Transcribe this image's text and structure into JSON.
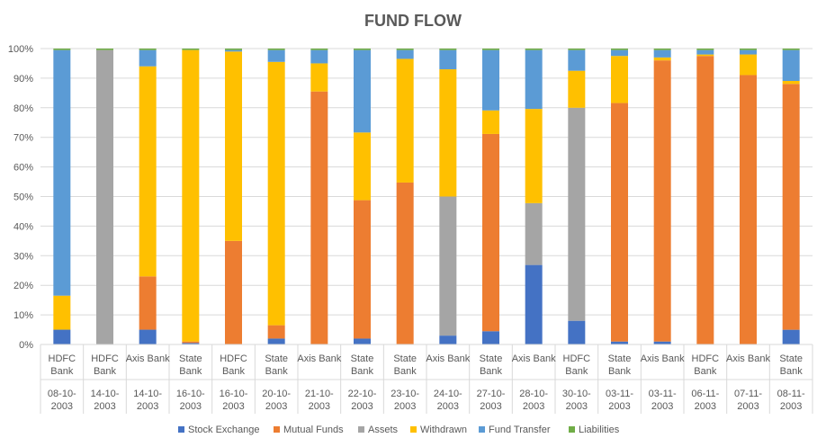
{
  "chart_data": {
    "type": "bar",
    "stacked": true,
    "normalized": true,
    "title": "FUND FLOW",
    "xlabel": "",
    "ylabel": "",
    "ylim": [
      0,
      100
    ],
    "yticks": [
      "0%",
      "10%",
      "20%",
      "30%",
      "40%",
      "50%",
      "60%",
      "70%",
      "80%",
      "90%",
      "100%"
    ],
    "grid": true,
    "legend_position": "bottom",
    "categories": [
      {
        "bank": [
          "HDFC",
          "Bank"
        ],
        "date": [
          "08-10-",
          "2003"
        ]
      },
      {
        "bank": [
          "HDFC",
          "Bank"
        ],
        "date": [
          "14-10-",
          "2003"
        ]
      },
      {
        "bank": [
          "Axis Bank"
        ],
        "date": [
          "14-10-",
          "2003"
        ]
      },
      {
        "bank": [
          "State",
          "Bank"
        ],
        "date": [
          "16-10-",
          "2003"
        ]
      },
      {
        "bank": [
          "HDFC",
          "Bank"
        ],
        "date": [
          "16-10-",
          "2003"
        ]
      },
      {
        "bank": [
          "State",
          "Bank"
        ],
        "date": [
          "20-10-",
          "2003"
        ]
      },
      {
        "bank": [
          "Axis Bank"
        ],
        "date": [
          "21-10-",
          "2003"
        ]
      },
      {
        "bank": [
          "State",
          "Bank"
        ],
        "date": [
          "22-10-",
          "2003"
        ]
      },
      {
        "bank": [
          "State",
          "Bank"
        ],
        "date": [
          "23-10-",
          "2003"
        ]
      },
      {
        "bank": [
          "Axis Bank"
        ],
        "date": [
          "24-10-",
          "2003"
        ]
      },
      {
        "bank": [
          "State",
          "Bank"
        ],
        "date": [
          "27-10-",
          "2003"
        ]
      },
      {
        "bank": [
          "Axis Bank"
        ],
        "date": [
          "28-10-",
          "2003"
        ]
      },
      {
        "bank": [
          "HDFC",
          "Bank"
        ],
        "date": [
          "30-10-",
          "2003"
        ]
      },
      {
        "bank": [
          "State",
          "Bank"
        ],
        "date": [
          "03-11-",
          "2003"
        ]
      },
      {
        "bank": [
          "Axis Bank"
        ],
        "date": [
          "03-11-",
          "2003"
        ]
      },
      {
        "bank": [
          "HDFC",
          "Bank"
        ],
        "date": [
          "06-11-",
          "2003"
        ]
      },
      {
        "bank": [
          "Axis Bank"
        ],
        "date": [
          "07-11-",
          "2003"
        ]
      },
      {
        "bank": [
          "State",
          "Bank"
        ],
        "date": [
          "08-11-",
          "2003"
        ]
      }
    ],
    "series": [
      {
        "name": "Stock Exchange",
        "color": "#4472C4",
        "values": [
          5,
          0,
          5,
          0.5,
          0,
          2,
          0,
          2,
          0,
          3,
          4.5,
          27,
          8,
          1,
          1,
          0,
          0,
          5
        ]
      },
      {
        "name": "Mutual Funds",
        "color": "#ED7D31",
        "values": [
          0,
          0,
          18,
          0.5,
          35,
          4.5,
          85.5,
          47,
          55,
          0,
          67,
          0,
          0,
          81,
          95,
          97.5,
          91.5,
          83.5
        ]
      },
      {
        "name": "Assets",
        "color": "#A5A5A5",
        "values": [
          0,
          100,
          0,
          0,
          0,
          0,
          0,
          0,
          0,
          47,
          0,
          21,
          72,
          0,
          0,
          0,
          0,
          0
        ]
      },
      {
        "name": "Withdrawn",
        "color": "#FFC000",
        "values": [
          11.5,
          0,
          71,
          98.5,
          64,
          89,
          9.5,
          23,
          42,
          43,
          8,
          32,
          12.5,
          16,
          1,
          0.5,
          7,
          1
        ]
      },
      {
        "name": "Fund Transfer",
        "color": "#5B9BD5",
        "values": [
          83,
          0,
          5.5,
          0,
          0.5,
          4,
          4.5,
          28,
          3,
          6.5,
          20.5,
          20,
          7,
          2,
          2.5,
          1.5,
          1.5,
          10.5
        ]
      },
      {
        "name": "Liabilities",
        "color": "#70AD47",
        "values": [
          0.5,
          0.5,
          0.5,
          0.5,
          0.5,
          0.5,
          0.5,
          0.5,
          0.5,
          0.5,
          0.5,
          0.5,
          0.5,
          0.5,
          0.5,
          0.5,
          0.5,
          0.5
        ]
      }
    ],
    "axis_color": "#D9D9D9",
    "text_color": "#595959"
  }
}
